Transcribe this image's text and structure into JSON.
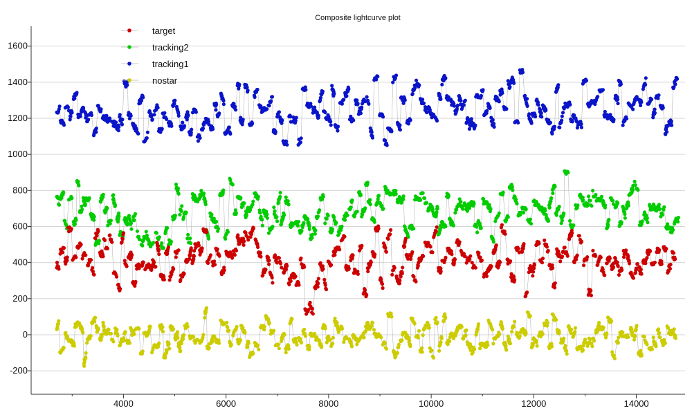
{
  "chart_data": {
    "type": "scatter",
    "title": "Composite lightcurve plot",
    "xlabel": "",
    "ylabel": "",
    "xlim": [
      2200,
      14950
    ],
    "ylim": [
      -330,
      1710
    ],
    "x_ticks": [
      4000,
      6000,
      8000,
      10000,
      12000,
      14000
    ],
    "y_ticks": [
      -200,
      0,
      200,
      400,
      600,
      800,
      1000,
      1200,
      1400,
      1600
    ],
    "grid": "horizontal",
    "legend_position": "top-left",
    "x_range": [
      2700,
      14750
    ],
    "series": [
      {
        "name": "target",
        "color": "#cc0000",
        "baseline": [
          [
            2700,
            440
          ],
          [
            4000,
            400
          ],
          [
            5500,
            460
          ],
          [
            6500,
            450
          ],
          [
            7300,
            380
          ],
          [
            7650,
            180
          ],
          [
            7800,
            300
          ],
          [
            8200,
            450
          ],
          [
            9000,
            430
          ],
          [
            10000,
            440
          ],
          [
            11000,
            430
          ],
          [
            12000,
            420
          ],
          [
            13000,
            440
          ],
          [
            14000,
            420
          ],
          [
            14750,
            430
          ]
        ],
        "spread": 105
      },
      {
        "name": "tracking2",
        "color": "#00cc00",
        "baseline": [
          [
            2700,
            720
          ],
          [
            3500,
            690
          ],
          [
            4500,
            560
          ],
          [
            5500,
            710
          ],
          [
            6500,
            700
          ],
          [
            7300,
            650
          ],
          [
            8000,
            690
          ],
          [
            9000,
            700
          ],
          [
            10000,
            710
          ],
          [
            11000,
            680
          ],
          [
            12000,
            700
          ],
          [
            13000,
            700
          ],
          [
            14000,
            720
          ],
          [
            14750,
            650
          ]
        ],
        "spread": 100
      },
      {
        "name": "tracking1",
        "color": "#0a14c8",
        "baseline": [
          [
            2700,
            1200
          ],
          [
            4000,
            1230
          ],
          [
            5000,
            1200
          ],
          [
            6000,
            1240
          ],
          [
            7000,
            1200
          ],
          [
            8000,
            1230
          ],
          [
            9000,
            1250
          ],
          [
            10000,
            1240
          ],
          [
            11000,
            1260
          ],
          [
            12000,
            1240
          ],
          [
            13000,
            1280
          ],
          [
            14000,
            1260
          ],
          [
            14750,
            1300
          ]
        ],
        "spread": 115
      },
      {
        "name": "nostar",
        "color": "#cccc00",
        "baseline": [
          [
            2700,
            0
          ],
          [
            4000,
            -10
          ],
          [
            6000,
            0
          ],
          [
            8000,
            -10
          ],
          [
            10000,
            0
          ],
          [
            12000,
            -5
          ],
          [
            14000,
            -10
          ],
          [
            14750,
            0
          ]
        ],
        "spread": 75
      }
    ]
  }
}
